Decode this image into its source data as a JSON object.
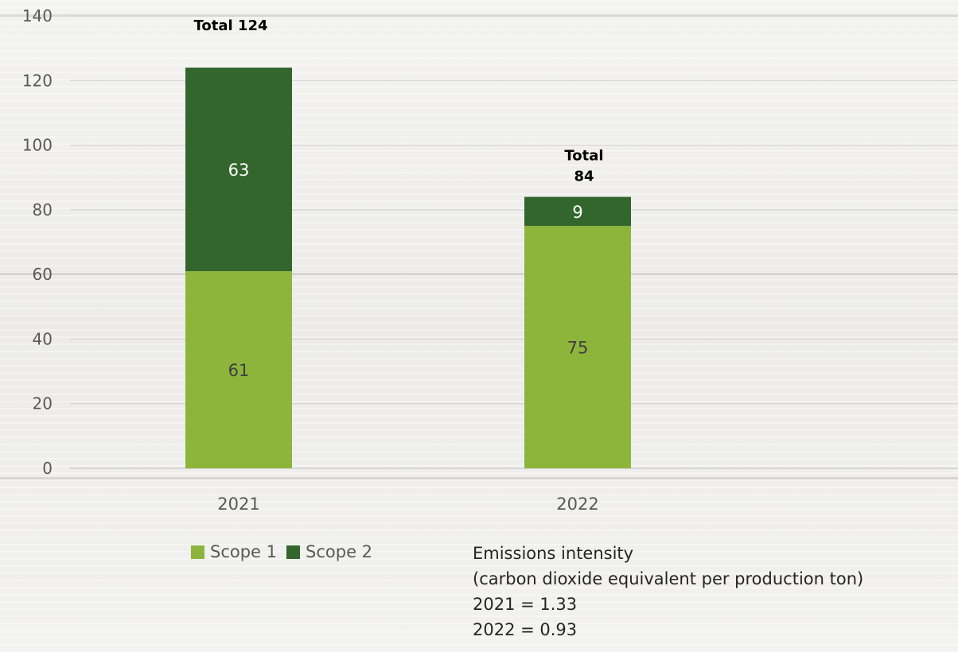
{
  "chart_data": {
    "type": "bar",
    "stacked": true,
    "categories": [
      "2021",
      "2022"
    ],
    "series": [
      {
        "name": "Scope 1",
        "values": [
          61,
          75
        ],
        "color": "#8db53c"
      },
      {
        "name": "Scope 2",
        "values": [
          63,
          9
        ],
        "color": "#33662d"
      }
    ],
    "totals": [
      {
        "category": "2021",
        "label": [
          "Total 124"
        ]
      },
      {
        "category": "2022",
        "label": [
          "Total",
          "84"
        ]
      }
    ],
    "ylim": [
      0,
      140
    ],
    "yticks": [
      0,
      20,
      40,
      60,
      80,
      100,
      120,
      140
    ],
    "grid": true,
    "legend": "bottom",
    "title": "",
    "xlabel": "",
    "ylabel": ""
  },
  "note": {
    "lines": [
      "Emissions intensity",
      "(carbon dioxide equivalent per production ton)",
      "2021 = 1.33",
      "2022 = 0.93"
    ]
  }
}
